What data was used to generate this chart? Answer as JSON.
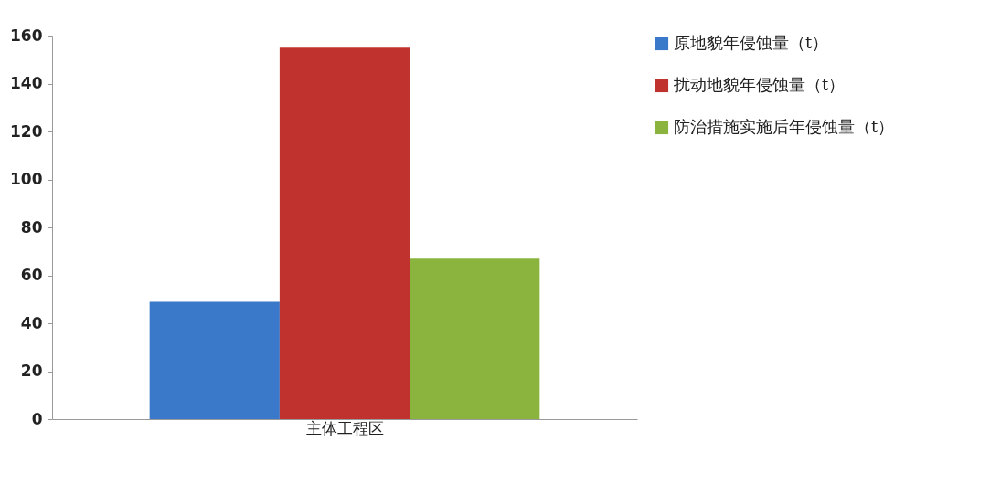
{
  "chart_data": {
    "type": "bar",
    "categories": [
      "主体工程区"
    ],
    "series": [
      {
        "name": "原地貌年侵蚀量（t）",
        "color": "#3a78c9",
        "values": [
          49
        ]
      },
      {
        "name": "扰动地貌年侵蚀量（t）",
        "color": "#c0322e",
        "values": [
          155
        ]
      },
      {
        "name": "防治措施实施后年侵蚀量（t）",
        "color": "#8ab43e",
        "values": [
          67
        ]
      }
    ],
    "ylim": [
      0,
      160
    ],
    "yticks": [
      0,
      20,
      40,
      60,
      80,
      100,
      120,
      140,
      160
    ],
    "grid": false,
    "legend": "top right"
  }
}
